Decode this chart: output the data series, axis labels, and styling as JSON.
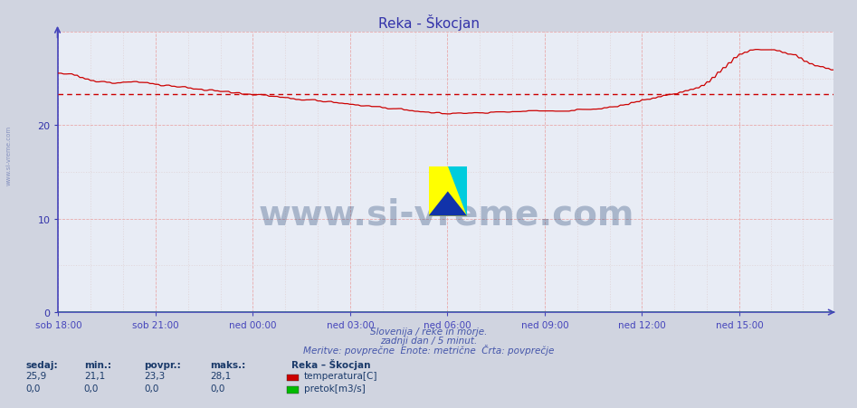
{
  "title": "Reka - Škocjan",
  "bg_color": "#d0d4e0",
  "plot_bg_color": "#e8ecf5",
  "grid_color_major": "#e8aaaa",
  "grid_color_minor": "#ddc8c8",
  "avg_line_value": 23.3,
  "avg_line_color": "#cc0000",
  "temp_line_color": "#cc0000",
  "flow_line_color": "#00aa00",
  "axis_color": "#4444bb",
  "title_color": "#3333aa",
  "tick_label_color": "#3333aa",
  "ymax": 30,
  "ymin": 0,
  "yticks": [
    0,
    10,
    20
  ],
  "xtick_labels": [
    "sob 18:00",
    "sob 21:00",
    "ned 00:00",
    "ned 03:00",
    "ned 06:00",
    "ned 09:00",
    "ned 12:00",
    "ned 15:00"
  ],
  "xtick_positions": [
    0,
    36,
    72,
    108,
    144,
    180,
    216,
    252
  ],
  "n_points": 288,
  "footer_line1": "Slovenija / reke in morje.",
  "footer_line2": "zadnji dan / 5 minut.",
  "footer_line3": "Meritve: povprečne  Enote: metrične  Črta: povprečje",
  "stat_labels": [
    "sedaj:",
    "min.:",
    "povpr.:",
    "maks.:"
  ],
  "stat_values_temp": [
    "25,9",
    "21,1",
    "23,3",
    "28,1"
  ],
  "stat_values_flow": [
    "0,0",
    "0,0",
    "0,0",
    "0,0"
  ],
  "legend_title": "Reka – Škocjan",
  "legend_items": [
    "temperatura[C]",
    "pretok[m3/s]"
  ],
  "legend_colors": [
    "#cc0000",
    "#00bb00"
  ],
  "watermark_text": "www.si-vreme.com",
  "watermark_color": "#1a3a6a",
  "watermark_alpha": 0.3,
  "sidebar_text": "www.si-vreme.com",
  "sidebar_color": "#5566aa"
}
